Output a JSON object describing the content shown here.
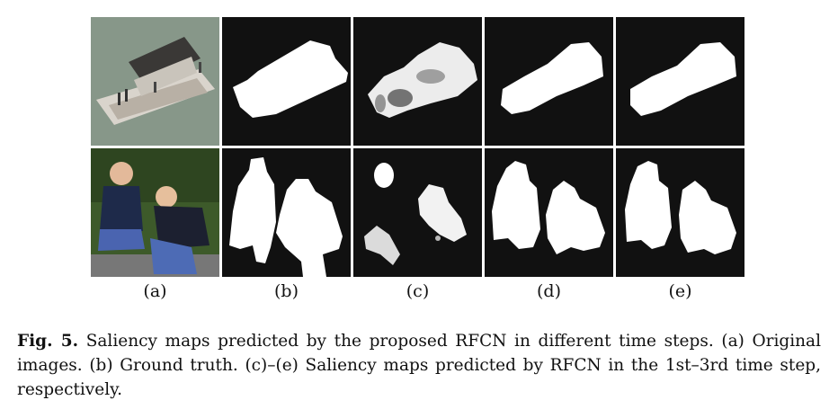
{
  "columns": [
    {
      "label": "(a)",
      "content": "Original images"
    },
    {
      "label": "(b)",
      "content": "Ground truth"
    },
    {
      "label": "(c)",
      "content": "Saliency map, time step 1"
    },
    {
      "label": "(d)",
      "content": "Saliency map, time step 2"
    },
    {
      "label": "(e)",
      "content": "Saliency map, time step 3"
    }
  ],
  "caption": {
    "fig_label": "Fig. 5.",
    "text": "Saliency maps predicted by the proposed RFCN in different time steps. (a) Original images. (b) Ground truth. (c)–(e) Saliency maps predicted by RFCN in the 1st–3rd time step, respectively."
  },
  "colors": {
    "map_background": "#111111",
    "map_foreground": "#ffffff",
    "water": "#8a9a8c",
    "foliage": "#3d5a2a"
  }
}
